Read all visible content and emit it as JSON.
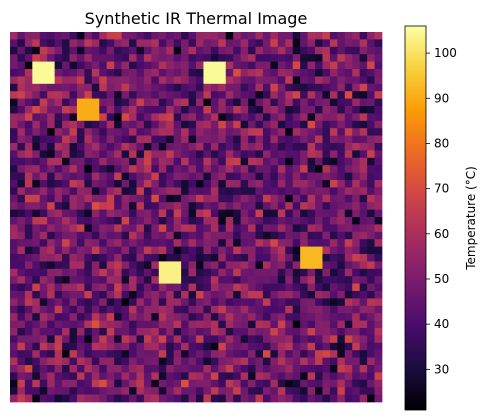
{
  "chart_data": {
    "type": "heatmap",
    "title": "Synthetic IR Thermal Image",
    "grid_rows": 50,
    "grid_cols": 50,
    "axes_visible": false,
    "colormap": "inferno",
    "colormap_stops": [
      "#000004",
      "#1b0c41",
      "#4a0c6b",
      "#781c6d",
      "#a52c60",
      "#cf4446",
      "#ed6925",
      "#fb9b06",
      "#f7d13d",
      "#fcffa4"
    ],
    "value_range": [
      21,
      106
    ],
    "background_range": [
      21,
      72
    ],
    "hotspots": [
      {
        "row": 4,
        "col": 3,
        "rows": 3,
        "cols": 3,
        "value": 105
      },
      {
        "row": 4,
        "col": 26,
        "rows": 3,
        "cols": 3,
        "value": 105
      },
      {
        "row": 9,
        "col": 9,
        "rows": 3,
        "cols": 3,
        "value": 90
      },
      {
        "row": 31,
        "col": 20,
        "rows": 3,
        "cols": 3,
        "value": 103
      },
      {
        "row": 29,
        "col": 39,
        "rows": 3,
        "cols": 3,
        "value": 92
      }
    ],
    "colorbar": {
      "label": "Temperature (°C)",
      "ticks": [
        30,
        40,
        50,
        60,
        70,
        80,
        90,
        100
      ],
      "tick_labels": [
        "30",
        "40",
        "50",
        "60",
        "70",
        "80",
        "90",
        "100"
      ]
    }
  }
}
